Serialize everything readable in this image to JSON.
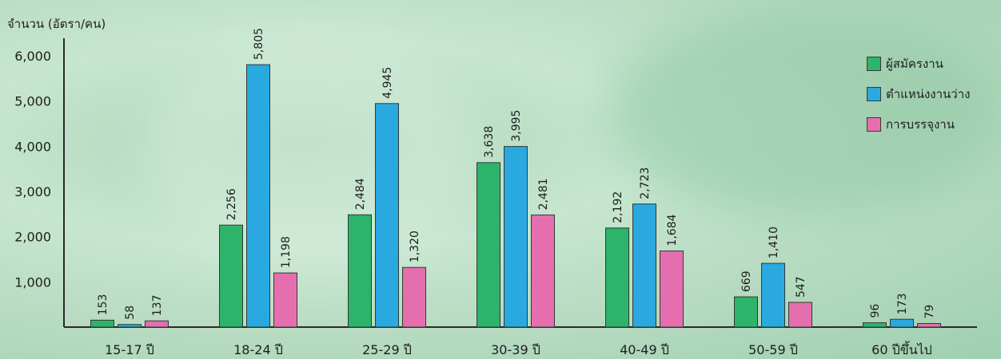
{
  "chart_data": {
    "type": "bar",
    "ylabel": "จำนวน (อัตรา/คน)",
    "ylim": [
      0,
      6000
    ],
    "yticks": [
      "1,000",
      "2,000",
      "3,000",
      "4,000",
      "5,000",
      "6,000"
    ],
    "ytick_values": [
      1000,
      2000,
      3000,
      4000,
      5000,
      6000
    ],
    "categories": [
      "15-17 ปี",
      "18-24 ปี",
      "25-29 ปี",
      "30-39 ปี",
      "40-49 ปี",
      "50-59 ปี",
      "60 ปีขึ้นไป"
    ],
    "series": [
      {
        "name": "ผู้สมัครงาน",
        "color": "#2db36a",
        "values": [
          153,
          2256,
          2484,
          3638,
          2192,
          669,
          96
        ],
        "labels": [
          "153",
          "2,256",
          "2,484",
          "3,638",
          "2,192",
          "669",
          "96"
        ]
      },
      {
        "name": "ตำแหน่งงานว่าง",
        "color": "#29a9e0",
        "values": [
          58,
          5805,
          4945,
          3995,
          2723,
          1410,
          173
        ],
        "labels": [
          "58",
          "5,805",
          "4,945",
          "3,995",
          "2,723",
          "1,410",
          "173"
        ]
      },
      {
        "name": "การบรรจุงาน",
        "color": "#e56fae",
        "values": [
          137,
          1198,
          1320,
          2481,
          1684,
          547,
          79
        ],
        "labels": [
          "137",
          "1,198",
          "1,320",
          "2,481",
          "1,684",
          "547",
          "79"
        ]
      }
    ],
    "legend_position": "top-right",
    "grid": false
  }
}
